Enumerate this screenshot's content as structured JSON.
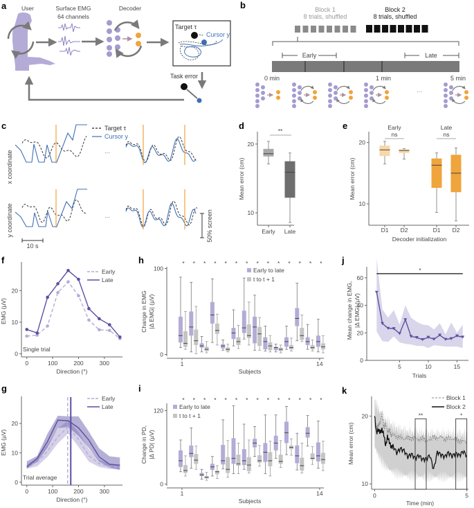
{
  "panel_labels": [
    "a",
    "b",
    "c",
    "d",
    "e",
    "f",
    "g",
    "h",
    "i",
    "j",
    "k"
  ],
  "colors": {
    "purple_light": "#b4acd6",
    "purple": "#a59bd0",
    "purple_dark": "#5b4fa1",
    "orange": "#f0a43c",
    "orange_light": "#f8d8a8",
    "cursor_blue": "#3f6fb5",
    "gray": "#a0a0a0",
    "gray_dark": "#6a6a6a",
    "arrow_gray": "#777777"
  },
  "panel_a": {
    "user_label": "User",
    "emg_label_1": "Surface EMG",
    "emg_label_2": "64 channels",
    "decoder_label": "Decoder",
    "target_label": "Target τ",
    "cursor_label": "Cursor y",
    "task_error_label": "Task error"
  },
  "panel_b": {
    "block1_title": "Block 1",
    "block1_sub": "8 trials, shuffled",
    "block2_title": "Block 2",
    "block2_sub": "8 trials, shuffled",
    "block_trials": 8,
    "early_label": "Early",
    "late_label": "Late",
    "time_labels": [
      "0 min",
      "1 min",
      "5 min"
    ],
    "ellipsis": "..."
  },
  "panel_c": {
    "legend_target": "Target τ",
    "legend_cursor": "Cursor y",
    "row_labels": [
      "x coordinate",
      "y coordinate"
    ],
    "ellipsis": "...",
    "time_scale": "10 s",
    "amp_scale": "50% screen"
  },
  "chart_data": [
    {
      "id": "d",
      "type": "box",
      "ylabel": "Mean error (cm)",
      "categories": [
        "Early",
        "Late"
      ],
      "yticks": [
        10,
        20
      ],
      "ylim": [
        8.2,
        22
      ],
      "boxes": [
        {
          "label": "Early",
          "whisker_low": 17.1,
          "q1": 18.2,
          "median": 18.6,
          "q3": 19.3,
          "whisker_high": 20.4
        },
        {
          "label": "Late",
          "whisker_low": 8.6,
          "q1": 12.2,
          "median": 15.9,
          "q3": 17.5,
          "whisker_high": 18.7
        }
      ],
      "significance": "**"
    },
    {
      "id": "e",
      "type": "box",
      "ylabel": "Mean error (cm)",
      "xlabel": "Decoder initialization",
      "groups": [
        "Early",
        "Late"
      ],
      "categories": [
        "D1",
        "D2",
        "D1",
        "D2"
      ],
      "yticks": [
        10,
        20
      ],
      "ylim": [
        6.5,
        22
      ],
      "boxes": [
        {
          "group": "Early",
          "label": "D1",
          "whisker_low": 16.5,
          "q1": 17.8,
          "median": 18.8,
          "q3": 19.5,
          "whisker_high": 20.2
        },
        {
          "group": "Early",
          "label": "D2",
          "whisker_low": 17.3,
          "q1": 18.3,
          "median": 18.7,
          "q3": 18.9,
          "whisker_high": 19.0
        },
        {
          "group": "Late",
          "label": "D1",
          "whisker_low": 8.6,
          "q1": 12.6,
          "median": 16.3,
          "q3": 17.4,
          "whisker_high": 18.3
        },
        {
          "group": "Late",
          "label": "D2",
          "whisker_low": 7.2,
          "q1": 11.9,
          "median": 15.0,
          "q3": 18.0,
          "whisker_high": 19.1
        }
      ],
      "significance": [
        "ns",
        "ns"
      ]
    },
    {
      "id": "f",
      "type": "line",
      "xlabel": "Direction (°)",
      "ylabel": "EMG (µV)",
      "annotation": "Single trial",
      "x": [
        0,
        40,
        80,
        120,
        160,
        200,
        240,
        280,
        320,
        360
      ],
      "xticks": [
        0,
        100,
        200,
        300
      ],
      "yticks": [
        0,
        10,
        20
      ],
      "xlim": [
        -10,
        370
      ],
      "ylim": [
        -1,
        28
      ],
      "series": [
        {
          "name": "Early",
          "style": "dashed",
          "values": [
            5.6,
            5.9,
            8.8,
            19.4,
            22.8,
            18.4,
            10.7,
            7.6,
            7.4,
            4.8
          ]
        },
        {
          "name": "Late",
          "style": "solid",
          "values": [
            7.7,
            6.6,
            17.9,
            22.2,
            26.4,
            23.6,
            14.3,
            11.1,
            9.2,
            5.3
          ]
        }
      ],
      "legend": "top-right"
    },
    {
      "id": "g",
      "type": "line",
      "xlabel": "Direction (°)",
      "ylabel": "EMG (µV)",
      "annotation": "Trial average",
      "x": [
        0,
        40,
        80,
        120,
        160,
        200,
        240,
        280,
        320,
        360
      ],
      "xticks": [
        0,
        100,
        200,
        300
      ],
      "yticks": [
        0,
        10,
        20
      ],
      "xlim": [
        -10,
        370
      ],
      "ylim": [
        -1,
        28
      ],
      "series": [
        {
          "name": "Early",
          "style": "dashed",
          "values": [
            5.2,
            6.8,
            10.5,
            15.5,
            18.8,
            14.5,
            9.0,
            6.3,
            5.3,
            5.0
          ],
          "band_low": [
            4.6,
            5.4,
            8.6,
            13.2,
            16.6,
            12.0,
            7.0,
            5.2,
            4.5,
            4.3
          ],
          "band_high": [
            6.0,
            8.2,
            12.8,
            18.2,
            21.0,
            17.0,
            11.2,
            7.6,
            6.3,
            5.9
          ],
          "preferred_direction": 158
        },
        {
          "name": "Late",
          "style": "solid",
          "values": [
            5.2,
            8.1,
            13.8,
            21.1,
            20.9,
            18.5,
            14.3,
            8.6,
            6.1,
            5.8
          ],
          "band_low": [
            4.6,
            6.9,
            11.8,
            18.4,
            18.8,
            15.8,
            11.6,
            7.0,
            5.0,
            4.2
          ],
          "band_high": [
            7.1,
            8.9,
            16.5,
            22.6,
            22.4,
            22.4,
            17.2,
            11.5,
            8.8,
            8.4
          ],
          "preferred_direction": 170
        }
      ],
      "legend": "top-right"
    },
    {
      "id": "h",
      "type": "box",
      "xlabel": "Subjects",
      "ylabel_1": "Change in EMG",
      "ylabel_2": "|Δ EMG| (µV)",
      "xticks": [
        "1",
        "14"
      ],
      "yticks": [
        0,
        100
      ],
      "ylim": [
        -2,
        102
      ],
      "significance": "*",
      "legend": [
        "Early to late",
        "t to t + 1"
      ],
      "series": [
        {
          "name": "Early to late",
          "boxes": [
            [
              8,
              14,
              22,
              44,
              90
            ],
            [
              3,
              22,
              32,
              50,
              84
            ],
            [
              3,
              8,
              10,
              13,
              21
            ],
            [
              14,
              36,
              46,
              61,
              88
            ],
            [
              5,
              7,
              10,
              12,
              17
            ],
            [
              10,
              18,
              25,
              31,
              52
            ],
            [
              18,
              25,
              31,
              51,
              89
            ],
            [
              5,
              13,
              32,
              44,
              69
            ],
            [
              4,
              6,
              15,
              20,
              33
            ],
            [
              3,
              5,
              8,
              9,
              12
            ],
            [
              6,
              9,
              15,
              20,
              33
            ],
            [
              16,
              33,
              42,
              54,
              83
            ],
            [
              6,
              11,
              15,
              20,
              35
            ],
            [
              3,
              9,
              15,
              22,
              41
            ]
          ]
        },
        {
          "name": "t to t + 1",
          "boxes": [
            [
              6,
              9,
              13,
              27,
              50
            ],
            [
              1,
              11,
              16,
              29,
              56
            ],
            [
              2,
              4,
              6,
              9,
              15
            ],
            [
              11,
              24,
              28,
              36,
              47
            ],
            [
              3,
              4,
              6,
              8,
              12
            ],
            [
              7,
              11,
              15,
              20,
              34
            ],
            [
              11,
              19,
              22,
              35,
              61
            ],
            [
              5,
              10,
              24,
              32,
              43
            ],
            [
              3,
              5,
              10,
              14,
              22
            ],
            [
              2,
              4,
              6,
              8,
              11
            ],
            [
              4,
              6,
              8,
              11,
              19
            ],
            [
              15,
              17,
              22,
              31,
              46
            ],
            [
              4,
              6,
              8,
              11,
              17
            ],
            [
              2,
              6,
              9,
              13,
              22
            ]
          ]
        }
      ]
    },
    {
      "id": "i",
      "type": "box",
      "xlabel": "Subjects",
      "ylabel_1": "Change in PD,",
      "ylabel_2": "|Δ PD| (µV)",
      "xticks": [
        "1",
        "14"
      ],
      "yticks": [
        0,
        120
      ],
      "ylim": [
        -3,
        132
      ],
      "significance": "*",
      "legend": [
        "Early to late",
        "t to t + 1"
      ],
      "series": [
        {
          "name": "Early to late",
          "boxes": [
            [
              20,
              28,
              38,
              55,
              72
            ],
            [
              26,
              44,
              50,
              63,
              92
            ],
            [
              8,
              13,
              15,
              18,
              24
            ],
            [
              13,
              23,
              28,
              33,
              45
            ],
            [
              25,
              32,
              38,
              64,
              105
            ],
            [
              17,
              33,
              42,
              75,
              128
            ],
            [
              24,
              31,
              38,
              57,
              98
            ],
            [
              45,
              60,
              67,
              74,
              94
            ],
            [
              17,
              36,
              52,
              67,
              113
            ],
            [
              42,
              55,
              67,
              79,
              113
            ],
            [
              48,
              67,
              84,
              102,
              127
            ],
            [
              23,
              34,
              46,
              63,
              83
            ],
            [
              62,
              76,
              83,
              93,
              112
            ],
            [
              26,
              37,
              46,
              68,
              103
            ]
          ]
        },
        {
          "name": "t to t + 1",
          "boxes": [
            [
              13,
              18,
              22,
              31,
              46
            ],
            [
              24,
              33,
              39,
              49,
              62
            ],
            [
              6,
              9,
              11,
              13,
              19
            ],
            [
              9,
              16,
              20,
              22,
              30
            ],
            [
              11,
              18,
              24,
              44,
              71
            ],
            [
              17,
              30,
              33,
              48,
              67
            ],
            [
              18,
              21,
              31,
              44,
              72
            ],
            [
              29,
              35,
              38,
              47,
              63
            ],
            [
              13,
              29,
              38,
              52,
              70
            ],
            [
              27,
              33,
              37,
              48,
              71
            ],
            [
              47,
              57,
              60,
              63,
              74
            ],
            [
              18,
              22,
              30,
              43,
              67
            ],
            [
              32,
              40,
              42,
              50,
              61
            ],
            [
              22,
              33,
              40,
              51,
              70
            ]
          ]
        }
      ]
    },
    {
      "id": "j",
      "type": "line",
      "xlabel": "Trials",
      "ylabel_1": "Mean change in EMG,",
      "ylabel_2": "|Δ EMG| (µV)",
      "x": [
        1,
        2,
        3,
        4,
        5,
        6,
        7,
        8,
        9,
        10,
        11,
        12,
        13,
        14,
        15,
        16
      ],
      "xticks": [
        5,
        10,
        15
      ],
      "yticks": [
        0,
        20,
        40,
        60
      ],
      "xlim": [
        0,
        17
      ],
      "ylim": [
        0,
        72
      ],
      "series": [
        {
          "name": "Mean",
          "values": [
            49.5,
            26.8,
            23.3,
            23.1,
            19.5,
            29.6,
            17.4,
            16.6,
            15.1,
            16.8,
            15.4,
            18.4,
            15.3,
            15.8,
            17.8,
            16.9
          ],
          "band_low": [
            21,
            14,
            13.5,
            17.5,
            13,
            12,
            11.5,
            10.5,
            10.5,
            9,
            11,
            10.5,
            10,
            10,
            10,
            9
          ],
          "band_high": [
            74,
            37,
            31,
            36.5,
            26,
            40,
            31,
            28,
            26,
            25.5,
            22.5,
            27,
            19,
            27.5,
            20,
            26
          ]
        }
      ],
      "significance": "*"
    },
    {
      "id": "k",
      "type": "line",
      "xlabel": "Time (min)",
      "ylabel": "Mean error (cm)",
      "xticks": [
        0,
        5
      ],
      "yticks": [
        10,
        20
      ],
      "xlim": [
        -0.05,
        5.05
      ],
      "ylim": [
        9.2,
        23
      ],
      "series": [
        {
          "name": "Block 1",
          "style": "dashed",
          "x": [
            0,
            0.1,
            0.2,
            0.3,
            0.4,
            0.5,
            0.6,
            0.7,
            0.8,
            0.9,
            1.0,
            1.2,
            1.4,
            1.6,
            1.8,
            2.0,
            2.2,
            2.4,
            2.6,
            2.8,
            3.0,
            3.2,
            3.4,
            3.6,
            3.8,
            4.0,
            4.2,
            4.4,
            4.6,
            4.8,
            5.0
          ],
          "values": [
            20.0,
            18.2,
            18.6,
            19.0,
            20.4,
            18.2,
            18.9,
            17.6,
            18.0,
            17.1,
            17.4,
            16.8,
            17.0,
            16.5,
            16.9,
            16.6,
            16.9,
            16.4,
            16.8,
            16.3,
            16.5,
            17.0,
            16.6,
            17.1,
            16.4,
            16.9,
            16.5,
            16.6,
            16.2,
            16.4,
            16.1
          ]
        },
        {
          "name": "Block 2",
          "style": "solid",
          "x": [
            0,
            0.1,
            0.2,
            0.3,
            0.4,
            0.5,
            0.6,
            0.7,
            0.8,
            0.9,
            1.0,
            1.2,
            1.4,
            1.6,
            1.8,
            2.0,
            2.2,
            2.4,
            2.6,
            2.8,
            3.0,
            3.2,
            3.4,
            3.6,
            3.8,
            4.0,
            4.2,
            4.4,
            4.6,
            4.8,
            5.0
          ],
          "values": [
            20.0,
            17.5,
            18.0,
            17.6,
            18.0,
            17.3,
            15.6,
            17.0,
            16.2,
            15.4,
            15.6,
            14.6,
            15.2,
            14.9,
            14.0,
            14.4,
            13.8,
            14.2,
            13.6,
            13.7,
            14.2,
            12.1,
            14.7,
            14.3,
            14.0,
            14.6,
            14.1,
            14.5,
            14.2,
            14.8,
            14.2
          ]
        }
      ],
      "band_low": 11.0,
      "band_high_start": 22.3,
      "windows": [
        {
          "from": 2.2,
          "to": 2.8,
          "label": "**"
        },
        {
          "from": 4.4,
          "to": 5.0,
          "label": "*"
        }
      ],
      "legend": "top-right"
    }
  ]
}
